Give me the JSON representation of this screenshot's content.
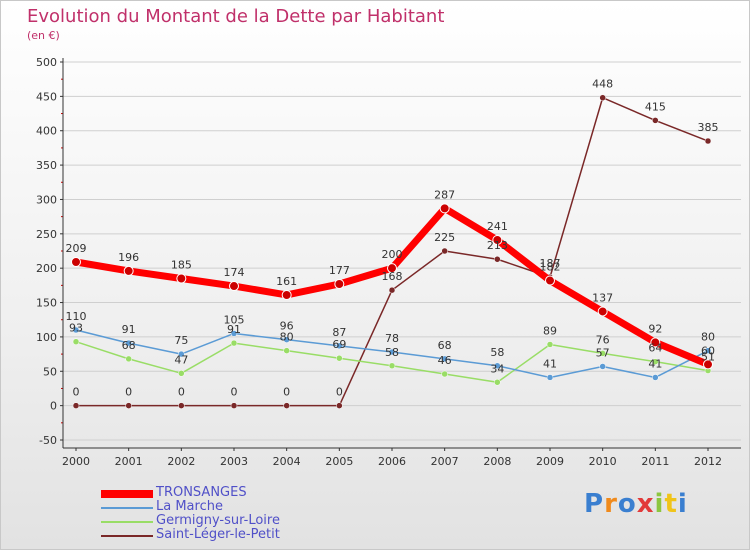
{
  "title": "Evolution du Montant de la Dette par Habitant",
  "subtitle": "(en €)",
  "brand": "Proxiti",
  "chart_data": {
    "type": "line",
    "title": "Evolution du Montant de la Dette par Habitant",
    "subtitle": "(en €)",
    "xlabel": "",
    "ylabel": "",
    "x": [
      "2000",
      "2001",
      "2002",
      "2003",
      "2004",
      "2005",
      "2006",
      "2007",
      "2008",
      "2009",
      "2010",
      "2011",
      "2012"
    ],
    "ylim": [
      -50,
      500
    ],
    "yticks": [
      -50,
      0,
      50,
      100,
      150,
      200,
      250,
      300,
      350,
      400,
      450,
      500
    ],
    "grid": true,
    "legend_position": "bottom-left",
    "series": [
      {
        "name": "TRONSANGES",
        "color": "#ff0000",
        "values": [
          209,
          196,
          185,
          174,
          161,
          177,
          200,
          287,
          241,
          182,
          137,
          92,
          60
        ]
      },
      {
        "name": "La Marche",
        "color": "#5b9bd5",
        "values": [
          110,
          91,
          75,
          105,
          96,
          87,
          78,
          68,
          58,
          41,
          57,
          41,
          80
        ]
      },
      {
        "name": "Germigny-sur-Loire",
        "color": "#99dd66",
        "values": [
          93,
          68,
          47,
          91,
          80,
          69,
          58,
          46,
          34,
          89,
          76,
          64,
          51
        ]
      },
      {
        "name": "Saint-Léger-le-Petit",
        "color": "#7a2828",
        "values": [
          0,
          0,
          0,
          0,
          0,
          0,
          168,
          225,
          213,
          187,
          448,
          415,
          385
        ]
      }
    ]
  }
}
